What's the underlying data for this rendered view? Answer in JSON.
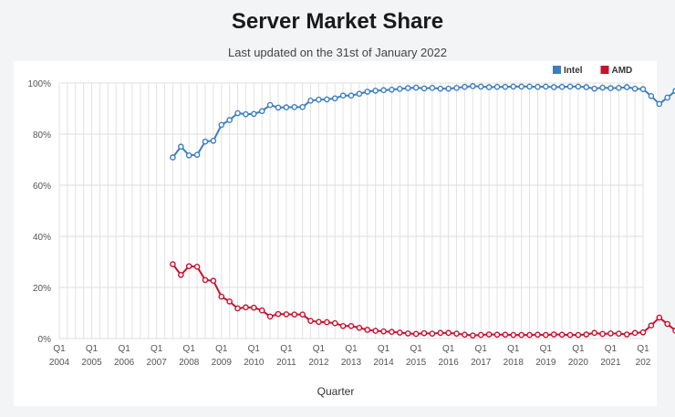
{
  "header": {
    "title": "Server Market Share",
    "subtitle": "Last updated on the 31st of January 2022"
  },
  "chart_data": {
    "type": "line",
    "title": "Server Market Share",
    "subtitle": "Last updated on the 31st of January 2022",
    "xlabel": "Quarter",
    "ylabel": "",
    "ylim": [
      0,
      100
    ],
    "y_ticks": [
      "0%",
      "20%",
      "40%",
      "60%",
      "80%",
      "100%"
    ],
    "x_ticks": [
      {
        "q": "Q1",
        "year": "2004"
      },
      {
        "q": "Q1",
        "year": "2005"
      },
      {
        "q": "Q1",
        "year": "2006"
      },
      {
        "q": "Q1",
        "year": "2007"
      },
      {
        "q": "Q1",
        "year": "2008"
      },
      {
        "q": "Q1",
        "year": "2009"
      },
      {
        "q": "Q1",
        "year": "2010"
      },
      {
        "q": "Q1",
        "year": "2011"
      },
      {
        "q": "Q1",
        "year": "2012"
      },
      {
        "q": "Q1",
        "year": "2013"
      },
      {
        "q": "Q1",
        "year": "2014"
      },
      {
        "q": "Q1",
        "year": "2015"
      },
      {
        "q": "Q1",
        "year": "2016"
      },
      {
        "q": "Q1",
        "year": "2017"
      },
      {
        "q": "Q1",
        "year": "2018"
      },
      {
        "q": "Q1",
        "year": "2019"
      },
      {
        "q": "Q1",
        "year": "2020"
      },
      {
        "q": "Q1",
        "year": "2021"
      },
      {
        "q": "Q1",
        "year": "202"
      }
    ],
    "grid": true,
    "legend_position": "top-right",
    "x_start": "2004 Q1",
    "x_end": "2022 Q1",
    "series": [
      {
        "name": "Intel",
        "color": "#3d7ebf",
        "start": "2007 Q3",
        "values": [
          70.9,
          75.1,
          71.7,
          71.9,
          77.1,
          77.4,
          83.6,
          85.5,
          88.2,
          87.8,
          87.9,
          89.0,
          91.4,
          90.4,
          90.5,
          90.6,
          90.6,
          93.1,
          93.5,
          93.6,
          94.0,
          95.1,
          95.1,
          95.8,
          96.6,
          97.0,
          97.2,
          97.4,
          97.7,
          98.0,
          98.2,
          97.9,
          98.1,
          97.8,
          97.8,
          98.1,
          98.5,
          98.8,
          98.6,
          98.4,
          98.5,
          98.5,
          98.6,
          98.6,
          98.6,
          98.5,
          98.6,
          98.4,
          98.5,
          98.6,
          98.6,
          98.4,
          97.8,
          98.2,
          98.0,
          98.1,
          98.4,
          97.8,
          97.6,
          94.9,
          91.8,
          94.3,
          96.9
        ]
      },
      {
        "name": "AMD",
        "color": "#c8102e",
        "start": "2007 Q3",
        "values": [
          29.1,
          24.9,
          28.3,
          28.1,
          22.9,
          22.6,
          16.4,
          14.5,
          11.8,
          12.2,
          12.1,
          11.0,
          8.6,
          9.6,
          9.5,
          9.4,
          9.4,
          6.9,
          6.5,
          6.4,
          6.0,
          4.9,
          4.9,
          4.2,
          3.4,
          3.0,
          2.8,
          2.6,
          2.3,
          2.0,
          1.8,
          2.1,
          1.9,
          2.2,
          2.2,
          1.9,
          1.5,
          1.2,
          1.4,
          1.6,
          1.5,
          1.5,
          1.4,
          1.4,
          1.4,
          1.5,
          1.4,
          1.6,
          1.5,
          1.4,
          1.4,
          1.6,
          2.2,
          1.8,
          2.0,
          1.9,
          1.6,
          2.2,
          2.4,
          5.1,
          8.2,
          5.7,
          3.1
        ]
      }
    ]
  }
}
